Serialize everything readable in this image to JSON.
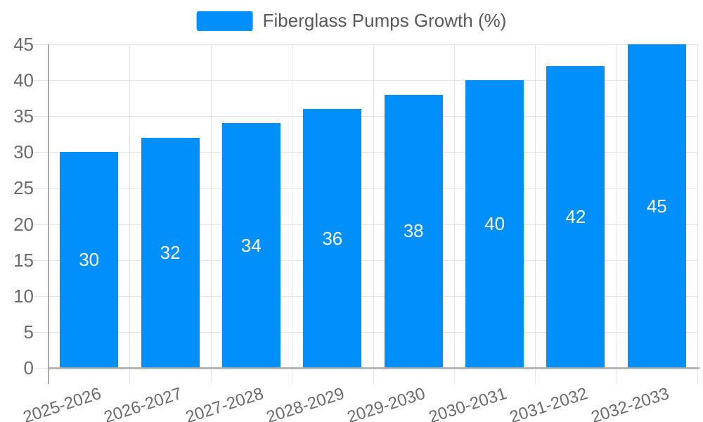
{
  "legend": {
    "label": "Fiberglass Pumps Growth (%)"
  },
  "chart_data": {
    "type": "bar",
    "title": "Fiberglass Pumps Growth (%)",
    "categories": [
      "2025-2026",
      "2026-2027",
      "2027-2028",
      "2028-2029",
      "2029-2030",
      "2030-2031",
      "2031-2032",
      "2032-2033"
    ],
    "values": [
      30,
      32,
      34,
      36,
      38,
      40,
      42,
      45
    ],
    "value_labels": [
      "30",
      "32",
      "34",
      "36",
      "38",
      "40",
      "42",
      "45"
    ],
    "yticks": [
      "0",
      "5",
      "10",
      "15",
      "20",
      "25",
      "30",
      "35",
      "40",
      "45"
    ],
    "ylim": [
      0,
      45
    ],
    "ytick_step": 5,
    "xlabel": "",
    "ylabel": "",
    "legend_position": "top-center",
    "grid": true,
    "x_label_rotation_deg": -18,
    "colors": {
      "bar": "#008FFB",
      "grid": "#e4e4e4",
      "axis": "#aaaaaa",
      "tick_label": "#6b6b6b",
      "legend_text": "#595959",
      "value_label": "#ffffff",
      "background": "#ffffff"
    }
  }
}
